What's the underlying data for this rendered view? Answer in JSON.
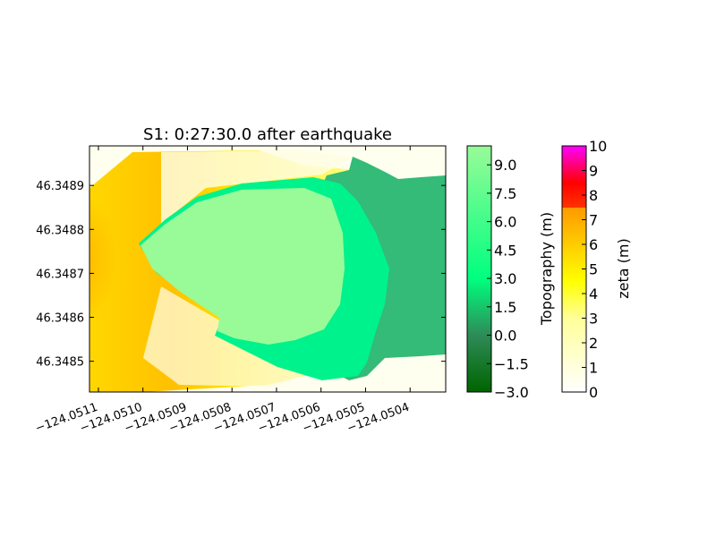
{
  "chart_data": {
    "type": "heatmap",
    "title": "S1: 0:27:30.0 after earthquake",
    "xlabel": "",
    "ylabel": "",
    "xlim": [
      -124.05112,
      -124.05032
    ],
    "ylim": [
      46.34843,
      46.34899
    ],
    "x_ticks": [
      -124.0511,
      -124.051,
      -124.0509,
      -124.0508,
      -124.0507,
      -124.0506,
      -124.0505,
      -124.0504
    ],
    "x_tick_labels": [
      "−124.0511",
      "−124.0510",
      "−124.0509",
      "−124.0508",
      "−124.0507",
      "−124.0506",
      "−124.0505",
      "−124.0504"
    ],
    "y_ticks": [
      46.3485,
      46.3486,
      46.3487,
      46.3488,
      46.3489
    ],
    "y_tick_labels": [
      "46.3485",
      "46.3486",
      "46.3487",
      "46.3488",
      "46.3489"
    ],
    "colorbars": [
      {
        "label": "Topography (m)",
        "range": [
          -3.0,
          10.0
        ],
        "ticks": [
          -3.0,
          -1.5,
          0.0,
          1.5,
          3.0,
          4.5,
          6.0,
          7.5,
          9.0
        ],
        "tick_labels": [
          "−3.0",
          "−1.5",
          "0.0",
          "1.5",
          "3.0",
          "4.5",
          "6.0",
          "7.5",
          "9.0"
        ],
        "colors": [
          {
            "v": -3.0,
            "c": "#006400"
          },
          {
            "v": 0.0,
            "c": "#2e8b57"
          },
          {
            "v": 3.0,
            "c": "#00ff7f"
          },
          {
            "v": 10.0,
            "c": "#98fb98"
          }
        ]
      },
      {
        "label": "zeta (m)",
        "range": [
          0,
          10
        ],
        "ticks": [
          0,
          1,
          2,
          3,
          4,
          5,
          6,
          7,
          8,
          9,
          10
        ],
        "tick_labels": [
          "0",
          "1",
          "2",
          "3",
          "4",
          "5",
          "6",
          "7",
          "8",
          "9",
          "10"
        ],
        "colors": [
          {
            "v": 0.0,
            "c": "#ffffff"
          },
          {
            "v": 3.0,
            "c": "#ffff99"
          },
          {
            "v": 4.5,
            "c": "#ffff00"
          },
          {
            "v": 7.5,
            "c": "#ff9900"
          },
          {
            "v": 7.5,
            "c": "#ff3300"
          },
          {
            "v": 8.5,
            "c": "#ff0000"
          },
          {
            "v": 10.0,
            "c": "#ff00ff"
          }
        ]
      }
    ],
    "regions": {
      "land_high": {
        "name": "Topography",
        "value": 10.0,
        "color": "#98fb98"
      },
      "land_mid": {
        "name": "Topography",
        "value": 3.6,
        "color": "#00fa8a"
      },
      "land_low": {
        "name": "Topography",
        "value": 0.3,
        "color": "#33bb77"
      },
      "water": {
        "name": "zeta",
        "value_range": [
          0.0,
          6.0
        ]
      }
    }
  }
}
